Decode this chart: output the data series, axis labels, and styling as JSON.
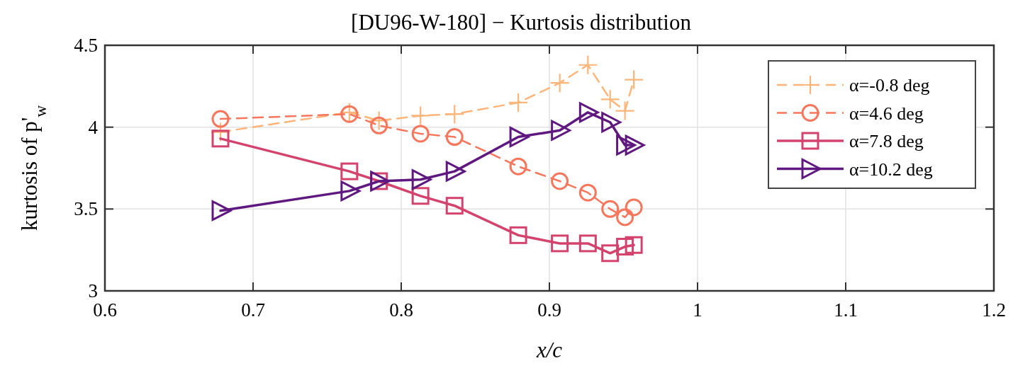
{
  "chart_data": {
    "type": "line",
    "title": "[DU96-W-180] − Kurtosis distribution",
    "xlabel": "x/c",
    "ylabel": "kurtosis of p'$_{w}$",
    "x": [
      0.678,
      0.765,
      0.785,
      0.813,
      0.836,
      0.879,
      0.907,
      0.926,
      0.941,
      0.951,
      0.957
    ],
    "series": [
      {
        "name": "α=-0.8 deg",
        "color": "#fdb57a",
        "marker": "cross",
        "line_style": "dashed",
        "values": [
          3.97,
          4.09,
          4.04,
          4.07,
          4.08,
          4.15,
          4.27,
          4.38,
          4.17,
          4.1,
          4.29
        ]
      },
      {
        "name": "α=4.6 deg",
        "color": "#f8765c",
        "marker": "circle",
        "line_style": "dashed",
        "values": [
          4.05,
          4.08,
          4.01,
          3.96,
          3.94,
          3.76,
          3.67,
          3.6,
          3.5,
          3.45,
          3.51
        ]
      },
      {
        "name": "α=7.8 deg",
        "color": "#d3436e",
        "marker": "square",
        "line_style": "solid",
        "values": [
          3.93,
          3.73,
          3.67,
          3.58,
          3.52,
          3.34,
          3.29,
          3.29,
          3.23,
          3.27,
          3.28
        ]
      },
      {
        "name": "α=10.2 deg",
        "color": "#5f187f",
        "marker": "triangle",
        "line_style": "solid",
        "values": [
          3.49,
          3.61,
          3.67,
          3.68,
          3.73,
          3.94,
          3.98,
          4.09,
          4.03,
          3.89,
          3.89
        ]
      }
    ],
    "xlim": [
      0.6,
      1.2
    ],
    "xticks": [
      0.6,
      0.7,
      0.8,
      0.9,
      1,
      1.1,
      1.2
    ],
    "ylim": [
      3,
      4.5
    ],
    "yticks": [
      3,
      3.5,
      4,
      4.5
    ],
    "grid": true,
    "legend": "top right"
  }
}
